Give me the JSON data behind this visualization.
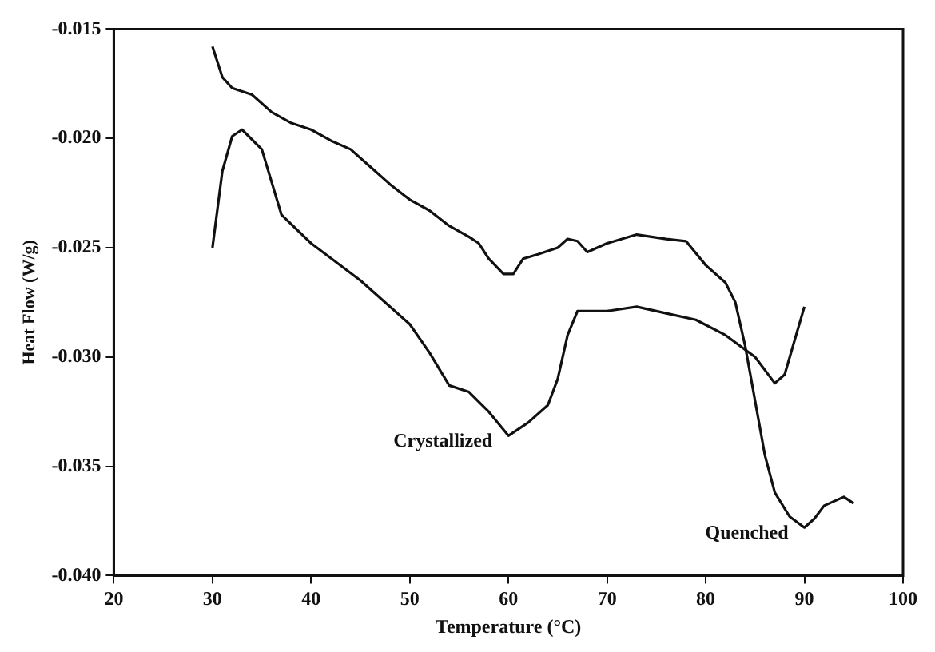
{
  "chart_data": {
    "type": "line",
    "xlabel": "Temperature (°C)",
    "ylabel": "Heat Flow (W/g)",
    "xlim": [
      20,
      100
    ],
    "xticks": [
      20,
      30,
      40,
      50,
      60,
      70,
      80,
      90,
      100
    ],
    "ylim": [
      -0.04,
      -0.015
    ],
    "yticks": [
      {
        "value": -0.04,
        "label": "-0.040"
      },
      {
        "value": -0.035,
        "label": "-0.035"
      },
      {
        "value": -0.03,
        "label": "-0.030"
      },
      {
        "value": -0.025,
        "label": "-0.025"
      },
      {
        "value": -0.02,
        "label": "-0.020"
      },
      {
        "value": -0.015,
        "label": "-0.015"
      }
    ],
    "grid": false,
    "legend": false,
    "marker": "none",
    "line_style": "solid",
    "series": [
      {
        "name": "Crystallized",
        "color": "#111111",
        "x": [
          30,
          31,
          32,
          33,
          35,
          37,
          40,
          45,
          50,
          52,
          54,
          56,
          58,
          60,
          62,
          64,
          65,
          66,
          67,
          70,
          73,
          76,
          79,
          82,
          85,
          87,
          88,
          90
        ],
        "values": [
          -0.025,
          -0.0215,
          -0.0199,
          -0.0196,
          -0.0205,
          -0.0235,
          -0.0248,
          -0.0265,
          -0.0285,
          -0.0298,
          -0.0313,
          -0.0316,
          -0.0325,
          -0.0336,
          -0.033,
          -0.0322,
          -0.031,
          -0.029,
          -0.0279,
          -0.0279,
          -0.0277,
          -0.028,
          -0.0283,
          -0.029,
          -0.03,
          -0.0312,
          -0.0308,
          -0.0277
        ]
      },
      {
        "name": "Quenched",
        "color": "#111111",
        "x": [
          30,
          31,
          32,
          34,
          36,
          38,
          40,
          42,
          44,
          46,
          48,
          50,
          52,
          54,
          56,
          57,
          58,
          59.5,
          60.5,
          61.5,
          63,
          65,
          66,
          67,
          68,
          70,
          73,
          76,
          78,
          80,
          82,
          83,
          84,
          85,
          86,
          87,
          88.5,
          90,
          91,
          92,
          94,
          95
        ],
        "values": [
          -0.0158,
          -0.0172,
          -0.0177,
          -0.018,
          -0.0188,
          -0.0193,
          -0.0196,
          -0.0201,
          -0.0205,
          -0.0213,
          -0.0221,
          -0.0228,
          -0.0233,
          -0.024,
          -0.0245,
          -0.0248,
          -0.0255,
          -0.0262,
          -0.0262,
          -0.0255,
          -0.0253,
          -0.025,
          -0.0246,
          -0.0247,
          -0.0252,
          -0.0248,
          -0.0244,
          -0.0246,
          -0.0247,
          -0.0258,
          -0.0266,
          -0.0275,
          -0.0295,
          -0.032,
          -0.0345,
          -0.0362,
          -0.0373,
          -0.0378,
          -0.0374,
          -0.0368,
          -0.0364,
          -0.0367
        ]
      }
    ]
  }
}
